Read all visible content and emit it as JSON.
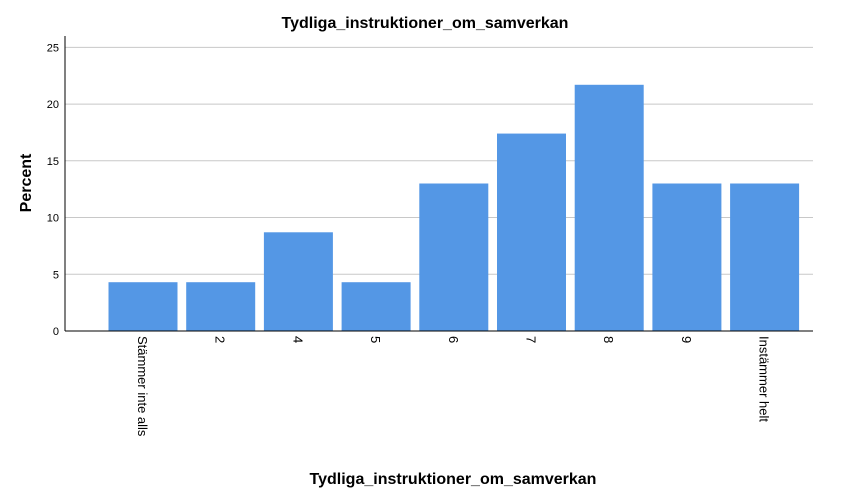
{
  "chart_data": {
    "type": "bar",
    "title": "Tydliga_instruktioner_om_samverkan",
    "xlabel": "Tydliga_instruktioner_om_samverkan",
    "ylabel": "Percent",
    "categories": [
      "Stämmer inte alls",
      "2",
      "4",
      "5",
      "6",
      "7",
      "8",
      "9",
      "Instämmer helt"
    ],
    "values": [
      4.3,
      4.3,
      8.7,
      4.3,
      13.0,
      17.4,
      21.7,
      13.0,
      13.0
    ],
    "ylim": [
      0,
      26
    ],
    "yticks": [
      "0",
      "5",
      "10",
      "15",
      "20",
      "25"
    ],
    "grid": true,
    "bar_color": "#5497e5"
  }
}
